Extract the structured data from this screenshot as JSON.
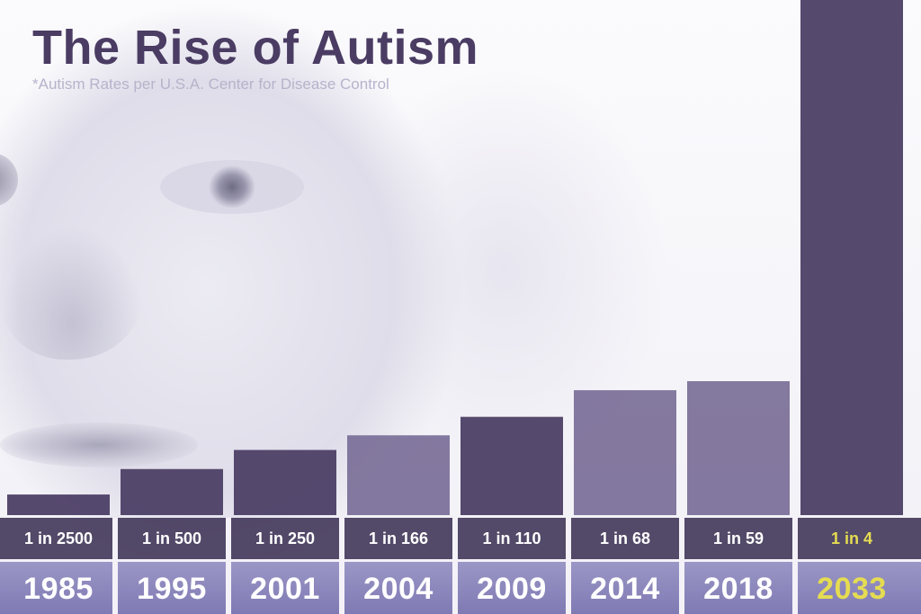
{
  "title": "The Rise of Autism",
  "subtitle": "*Autism Rates per U.S.A. Center for Disease Control",
  "colors": {
    "title": "#4a3c63",
    "bar_dark": "#4d3f66",
    "bar_light": "#7a6e97",
    "highlight_text": "#e5dc52",
    "year_band": "#8c88bd"
  },
  "chart_data": {
    "type": "bar",
    "categories": [
      "1985",
      "1995",
      "2001",
      "2004",
      "2009",
      "2014",
      "2018",
      "2033"
    ],
    "rate_labels": [
      "1 in 2500",
      "1 in 500",
      "1 in 250",
      "1 in 166",
      "1 in 110",
      "1 in 68",
      "1 in 59",
      "1 in 4"
    ],
    "values": [
      0.04,
      0.2,
      0.4,
      0.6,
      0.91,
      1.47,
      1.69,
      25
    ],
    "value_unit": "percent of children",
    "highlighted_category": "2033",
    "title": "The Rise of Autism",
    "subtitle": "*Autism Rates per U.S.A. Center for Disease Control",
    "xlabel": "",
    "ylabel": "",
    "grid": false,
    "legend": "none"
  }
}
